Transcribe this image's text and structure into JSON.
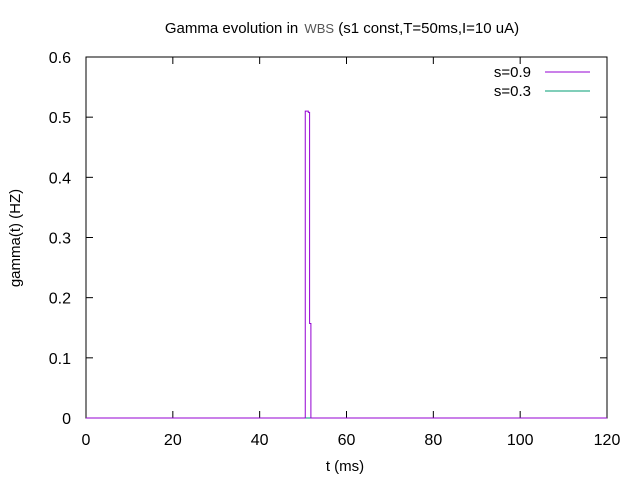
{
  "chart_data": {
    "type": "line",
    "title": "Gamma evolution in  WBS (s1 const,T=50ms,I=10 uA)",
    "title_parts": {
      "prefix": "Gamma evolution in ",
      "highlight": "WBS",
      "suffix": " (s1 const,T=50ms,I=10 uA)"
    },
    "xlabel": "t (ms)",
    "ylabel": "gamma(t) (HZ)",
    "xlim": [
      0,
      120
    ],
    "ylim": [
      0,
      0.6
    ],
    "x_ticks": [
      0,
      20,
      40,
      60,
      80,
      100,
      120
    ],
    "y_ticks": [
      0,
      0.1,
      0.2,
      0.3,
      0.4,
      0.5,
      0.6
    ],
    "x_tick_labels": [
      "0",
      "20",
      "40",
      "60",
      "80",
      "100",
      "120"
    ],
    "y_tick_labels": [
      "0",
      "0.1",
      "0.2",
      "0.3",
      "0.4",
      "0.5",
      "0.6"
    ],
    "grid": false,
    "legend_position": "top-right",
    "series": [
      {
        "name": "s=0.9",
        "color": "#9400d3",
        "points": [
          [
            0,
            0
          ],
          [
            50.5,
            0
          ],
          [
            50.5,
            0.51
          ],
          [
            51.2,
            0.51
          ],
          [
            51.2,
            0.508
          ],
          [
            51.5,
            0.508
          ],
          [
            51.5,
            0.157
          ],
          [
            51.8,
            0.157
          ],
          [
            51.8,
            0
          ],
          [
            120,
            0
          ]
        ]
      },
      {
        "name": "s=0.3",
        "color": "#009e73",
        "points": [
          [
            0,
            0
          ],
          [
            120,
            0
          ]
        ]
      }
    ]
  }
}
